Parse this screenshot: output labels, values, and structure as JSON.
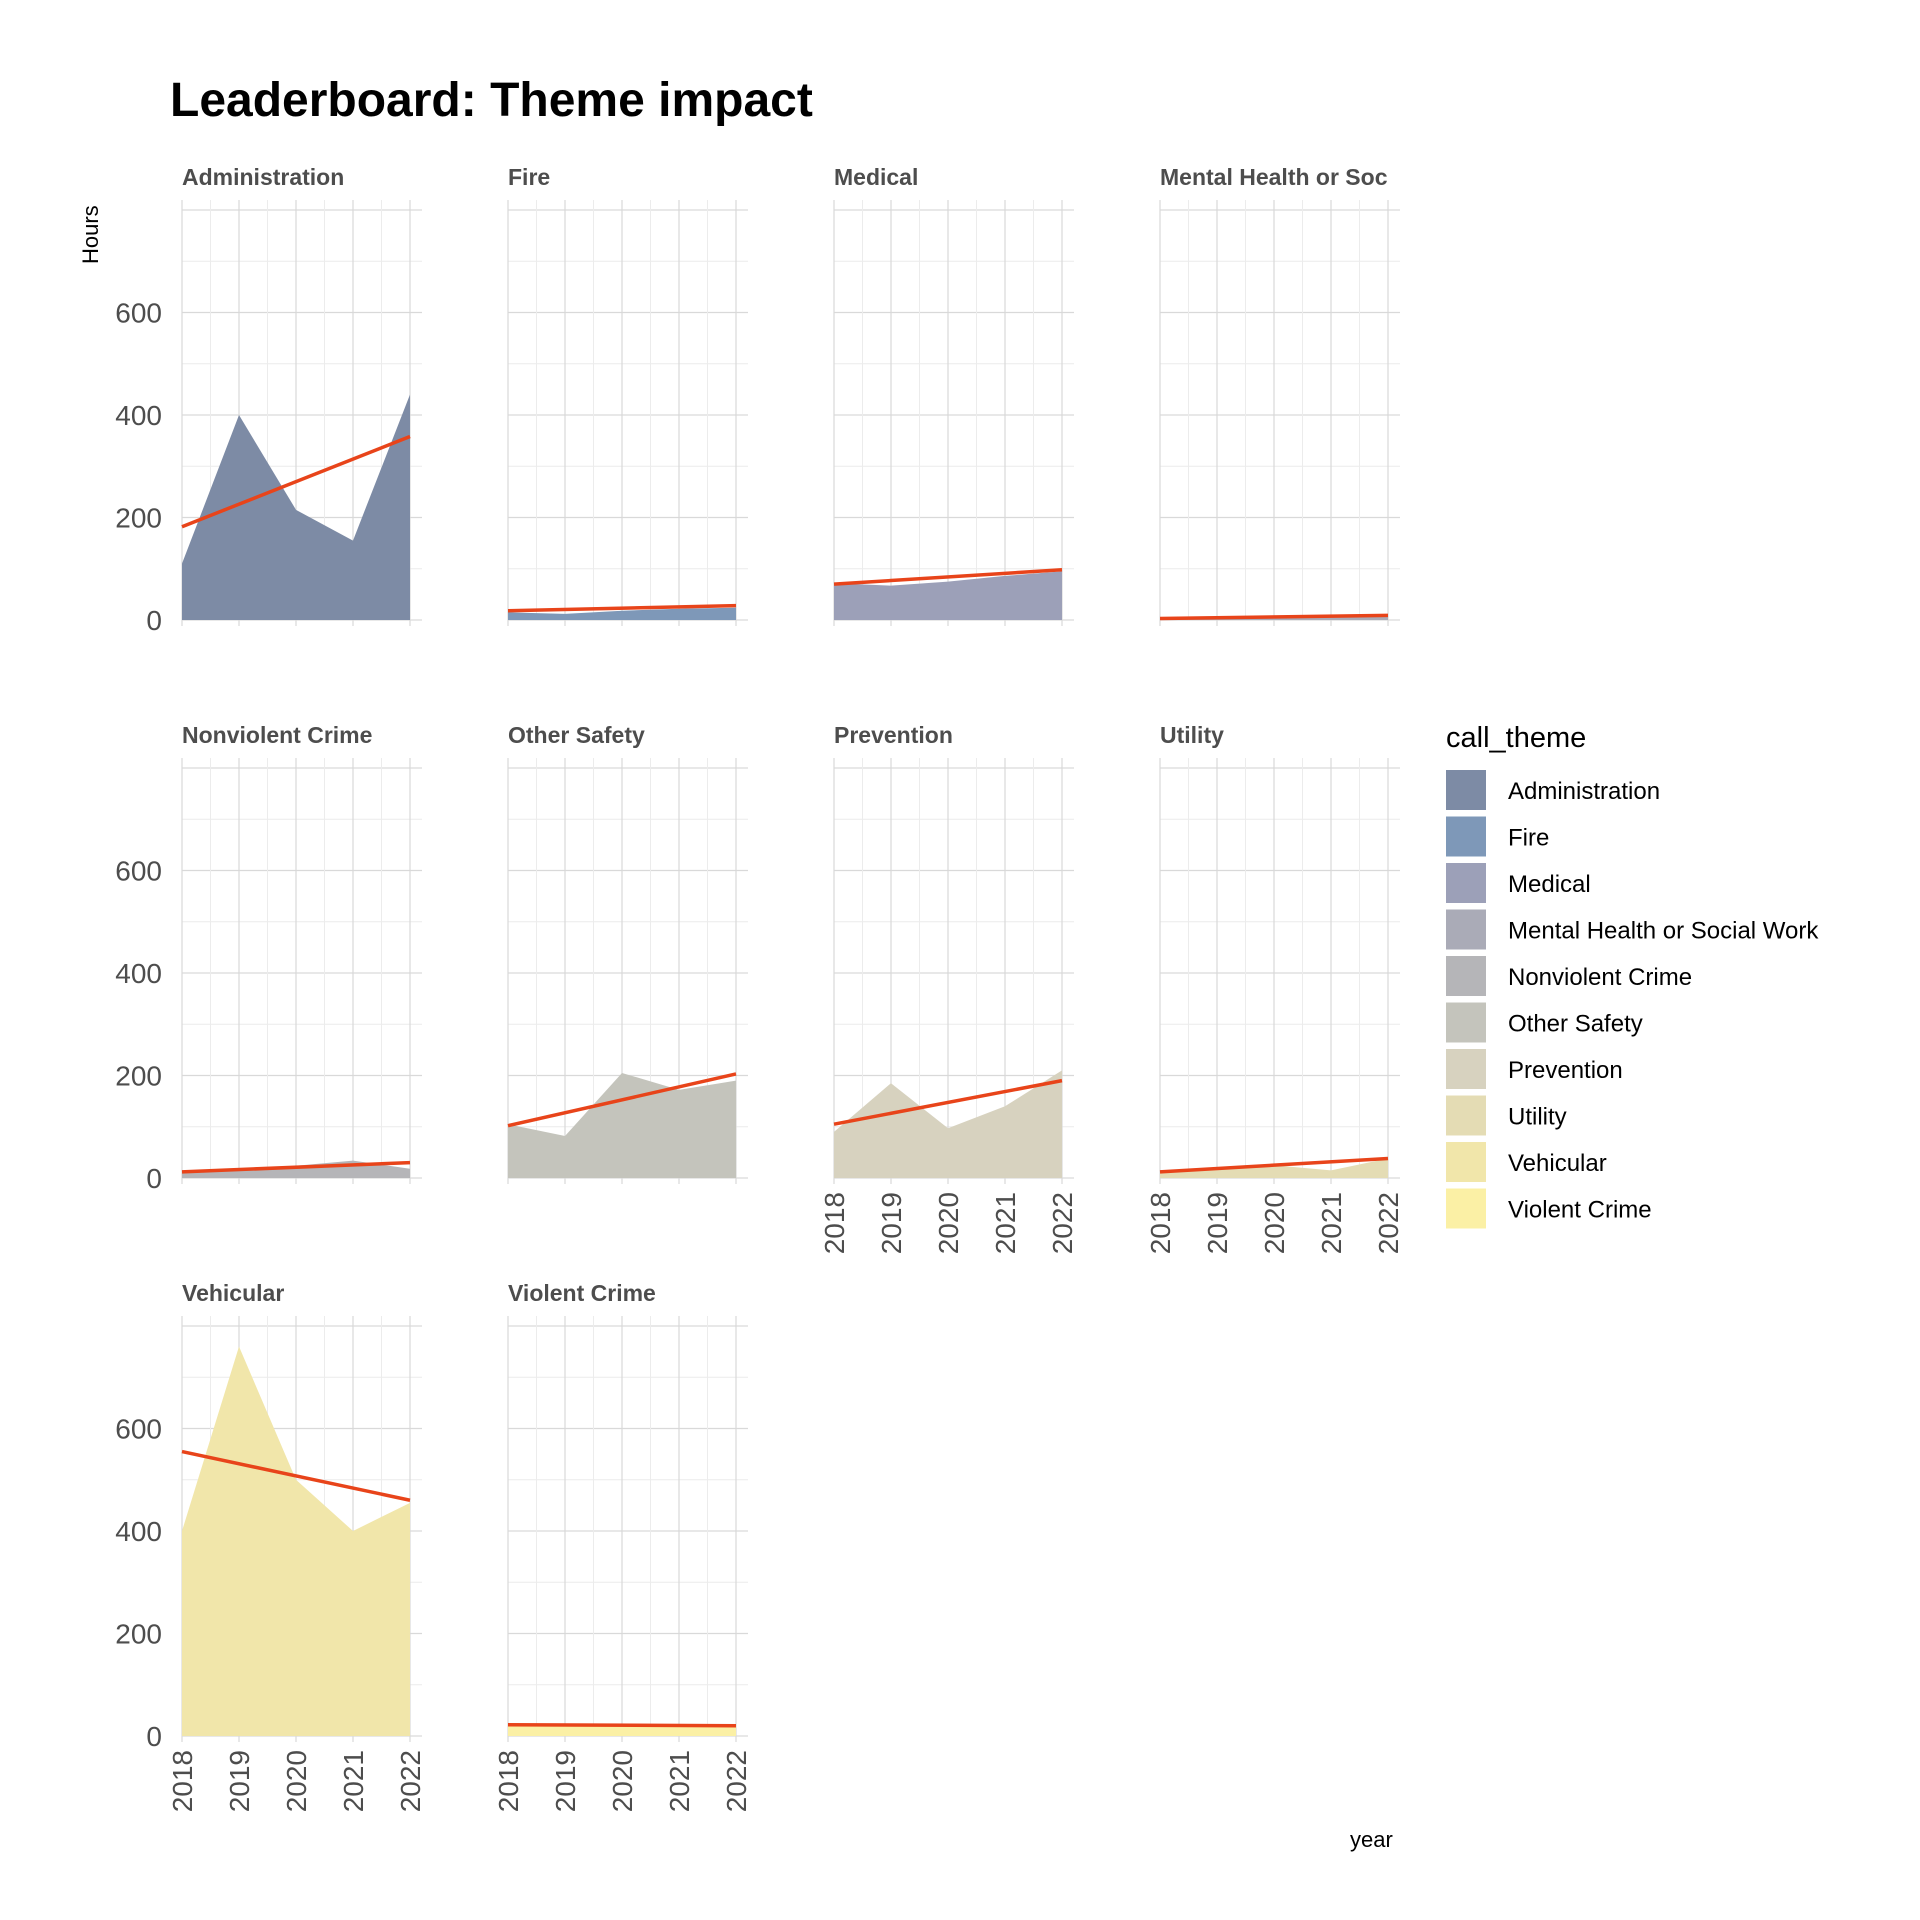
{
  "chart_data": {
    "type": "area",
    "title": "Leaderboard: Theme impact",
    "xlabel": "year",
    "ylabel": "Hours",
    "x": [
      2018,
      2019,
      2020,
      2021,
      2022
    ],
    "x_ticks": [
      "2018",
      "2019",
      "2020",
      "2021",
      "2022"
    ],
    "ylim": [
      0,
      800
    ],
    "y_ticks": [
      0,
      200,
      400,
      600
    ],
    "grid": true,
    "facets": "wrap by call_theme, 4 columns, shared y axis",
    "trend_line_color": "#e8441a",
    "legend": {
      "title": "call_theme",
      "placement": "right",
      "entries": [
        "Administration",
        "Fire",
        "Medical",
        "Mental Health or Social Work",
        "Nonviolent Crime",
        "Other Safety",
        "Prevention",
        "Utility",
        "Vehicular",
        "Violent Crime"
      ]
    },
    "series": [
      {
        "name": "Administration",
        "facet_label": "Administration",
        "color": "#7d8ba5",
        "values": [
          110,
          400,
          215,
          155,
          440
        ],
        "trend": [
          182,
          358
        ]
      },
      {
        "name": "Fire",
        "facet_label": "Fire",
        "color": "#7e98b8",
        "values": [
          15,
          12,
          18,
          22,
          24
        ],
        "trend": [
          18,
          28
        ]
      },
      {
        "name": "Medical",
        "facet_label": "Medical",
        "color": "#9ca0b8",
        "values": [
          72,
          67,
          75,
          86,
          95
        ],
        "trend": [
          70,
          98
        ]
      },
      {
        "name": "Mental Health or Social Work",
        "facet_label": "Mental Health or Soc",
        "color": "#aaabb7",
        "values": [
          3,
          4,
          6,
          7,
          8
        ],
        "trend": [
          3,
          9
        ]
      },
      {
        "name": "Nonviolent Crime",
        "facet_label": "Nonviolent Crime",
        "color": "#b5b5b8",
        "values": [
          10,
          14,
          24,
          34,
          18
        ],
        "trend": [
          12,
          30
        ]
      },
      {
        "name": "Other Safety",
        "facet_label": "Other Safety",
        "color": "#c4c4bc",
        "values": [
          105,
          82,
          205,
          172,
          190
        ],
        "trend": [
          102,
          203
        ]
      },
      {
        "name": "Prevention",
        "facet_label": "Prevention",
        "color": "#d7d2bf",
        "values": [
          90,
          185,
          97,
          140,
          210
        ],
        "trend": [
          105,
          190
        ]
      },
      {
        "name": "Utility",
        "facet_label": "Utility",
        "color": "#e4dcb4",
        "values": [
          14,
          18,
          25,
          15,
          38
        ],
        "trend": [
          12,
          38
        ]
      },
      {
        "name": "Vehicular",
        "facet_label": "Vehicular",
        "color": "#f1e6aa",
        "values": [
          400,
          760,
          500,
          400,
          455
        ],
        "trend": [
          555,
          460
        ]
      },
      {
        "name": "Violent Crime",
        "facet_label": "Violent Crime",
        "color": "#fbf0a5",
        "values": [
          22,
          20,
          20,
          20,
          20
        ],
        "trend": [
          22,
          20
        ]
      }
    ]
  }
}
